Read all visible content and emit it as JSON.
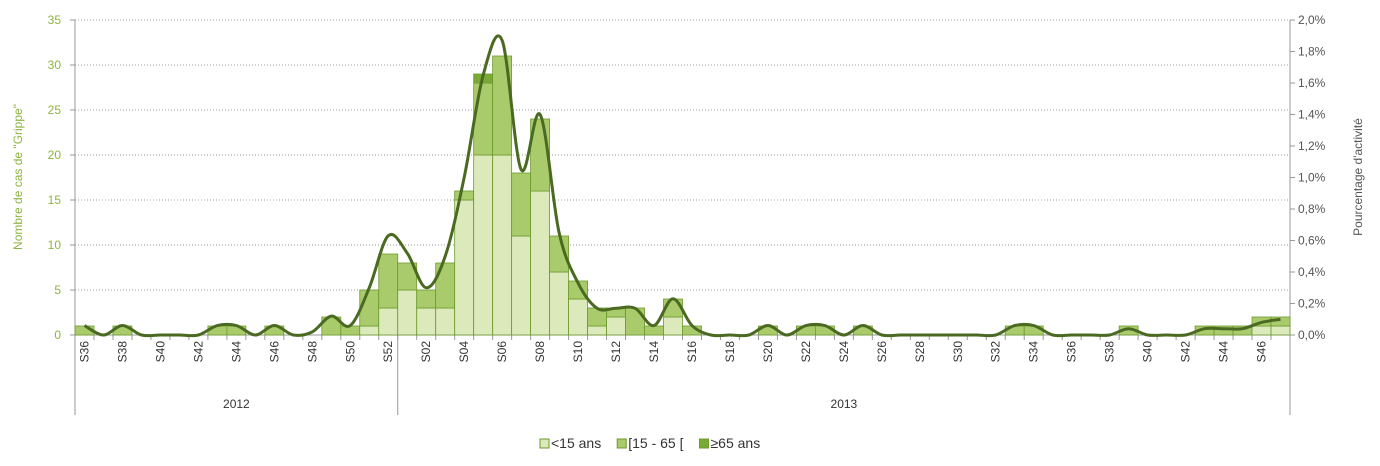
{
  "chart_data": {
    "type": "bar",
    "y_label": "Nombre de cas de \"Grippe\"",
    "y2_label": "Pourcentage d'activité",
    "categories": [
      "S36",
      null,
      "S38",
      null,
      "S40",
      null,
      "S42",
      null,
      "S44",
      null,
      "S46",
      null,
      "S48",
      null,
      "S50",
      null,
      "S52",
      null,
      "S02",
      null,
      "S04",
      null,
      "S06",
      null,
      "S08",
      null,
      "S10",
      null,
      "S12",
      null,
      "S14",
      null,
      "S16",
      null,
      "S18",
      null,
      "S20",
      null,
      "S22",
      null,
      "S24",
      null,
      "S26",
      null,
      "S28",
      null,
      "S30",
      null,
      "S32",
      null,
      "S34",
      null,
      "S36",
      null,
      "S38",
      null,
      "S40",
      null,
      "S42",
      null,
      "S44",
      null,
      "S46",
      null
    ],
    "year_groups": [
      {
        "label": "2012",
        "count": 17
      },
      {
        "label": "2013",
        "count": 47
      }
    ],
    "series": [
      {
        "name": "<15 ans",
        "color": "#dbe9bb",
        "values": [
          0,
          0,
          0,
          0,
          0,
          0,
          0,
          0,
          0,
          0,
          0,
          0,
          0,
          0,
          0,
          1,
          3,
          5,
          3,
          3,
          15,
          20,
          20,
          11,
          16,
          7,
          4,
          1,
          2,
          0,
          0,
          2,
          0,
          0,
          0,
          0,
          0,
          0,
          0,
          0,
          0,
          0,
          0,
          0,
          0,
          0,
          0,
          0,
          0,
          0,
          0,
          0,
          0,
          0,
          0,
          0,
          0,
          0,
          0,
          0,
          0,
          0,
          1,
          1
        ]
      },
      {
        "name": "[15 - 65 [",
        "color": "#aacb6b",
        "values": [
          1,
          0,
          1,
          0,
          0,
          0,
          0,
          1,
          1,
          0,
          1,
          0,
          0,
          2,
          1,
          4,
          6,
          3,
          2,
          5,
          1,
          8,
          11,
          7,
          8,
          4,
          2,
          2,
          1,
          3,
          1,
          2,
          1,
          0,
          0,
          0,
          1,
          0,
          1,
          1,
          0,
          1,
          0,
          0,
          0,
          0,
          0,
          0,
          0,
          1,
          1,
          0,
          0,
          0,
          0,
          1,
          0,
          0,
          0,
          1,
          1,
          1,
          1,
          1
        ]
      },
      {
        "name": "≥65 ans",
        "color": "#7aaa35",
        "values": [
          0,
          0,
          0,
          0,
          0,
          0,
          0,
          0,
          0,
          0,
          0,
          0,
          0,
          0,
          0,
          0,
          0,
          0,
          0,
          0,
          0,
          1,
          0,
          0,
          0,
          0,
          0,
          0,
          0,
          0,
          0,
          0,
          0,
          0,
          0,
          0,
          0,
          0,
          0,
          0,
          0,
          0,
          0,
          0,
          0,
          0,
          0,
          0,
          0,
          0,
          0,
          0,
          0,
          0,
          0,
          0,
          0,
          0,
          0,
          0,
          0,
          0,
          0,
          0
        ]
      },
      {
        "name": "Pourcentage d'activité",
        "type": "line",
        "axis": "y2",
        "color": "#4a6a22",
        "values": [
          0.06,
          0,
          0.06,
          0,
          0,
          0,
          0,
          0.06,
          0.06,
          0,
          0.06,
          0,
          0.02,
          0.12,
          0.06,
          0.3,
          0.63,
          0.52,
          0.3,
          0.5,
          1.0,
          1.65,
          1.87,
          1.05,
          1.4,
          0.65,
          0.33,
          0.17,
          0.17,
          0.17,
          0.06,
          0.23,
          0.06,
          0,
          0,
          0,
          0.06,
          0,
          0.06,
          0.06,
          0,
          0.06,
          0,
          0,
          0,
          0,
          0,
          0,
          0,
          0.06,
          0.06,
          0,
          0,
          0,
          0,
          0.04,
          0,
          0,
          0,
          0.04,
          0.04,
          0.04,
          0.08,
          0.1
        ]
      }
    ],
    "ylim": [
      0,
      35
    ],
    "yticks": [
      0,
      5,
      10,
      15,
      20,
      25,
      30,
      35
    ],
    "y2lim": [
      0,
      2.0
    ],
    "y2ticks": [
      {
        "value": 0,
        "label": "0,0%"
      },
      {
        "value": 0.2,
        "label": "0,2%"
      },
      {
        "value": 0.4,
        "label": "0,4%"
      },
      {
        "value": 0.6,
        "label": "0,6%"
      },
      {
        "value": 0.8,
        "label": "0,8%"
      },
      {
        "value": 1.0,
        "label": "1,0%"
      },
      {
        "value": 1.2,
        "label": "1,2%"
      },
      {
        "value": 1.4,
        "label": "1,4%"
      },
      {
        "value": 1.6,
        "label": "1,6%"
      },
      {
        "value": 1.8,
        "label": "1,8%"
      },
      {
        "value": 2.0,
        "label": "2,0%"
      }
    ],
    "grid": true
  }
}
